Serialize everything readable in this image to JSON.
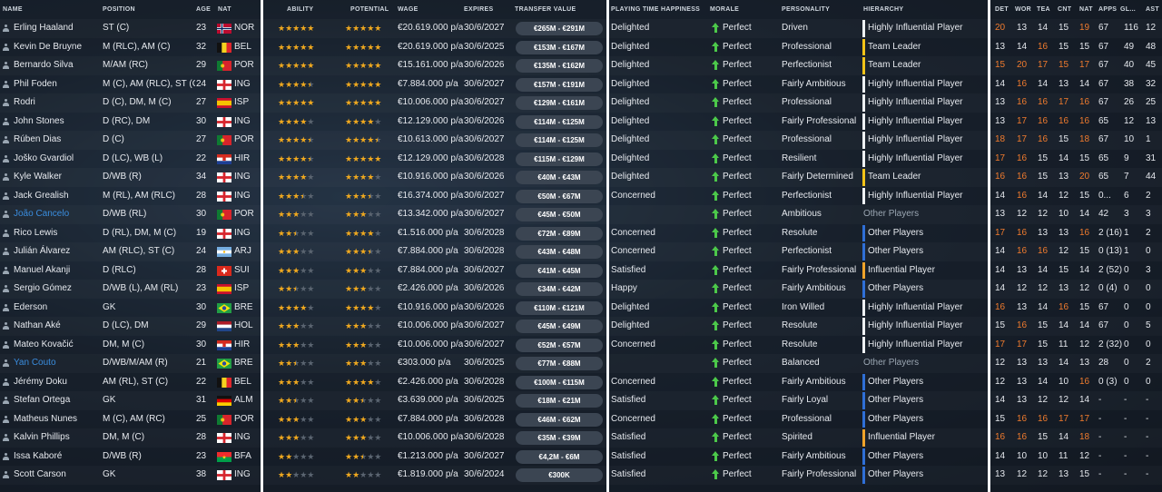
{
  "columns": {
    "name": "NAME",
    "position": "POSITION",
    "age": "AGE",
    "nat": "NAT",
    "ability": "ABILITY",
    "potential": "POTENTIAL",
    "wage": "WAGE",
    "expires": "EXPIRES",
    "transfer_value": "TRANSFER VALUE",
    "playing_time": "PLAYING TIME HAPPINESS",
    "morale": "MORALE",
    "personality": "PERSONALITY",
    "hierarchy": "HIERARCHY",
    "det": "DET",
    "wor": "WOR",
    "tea": "TEA",
    "cnt": "CNT",
    "nat2": "NAT",
    "apps": "APPS",
    "gls": "GL...",
    "ast": "AST"
  },
  "colors": {
    "accent_orange": "#f07b2e",
    "star": "#f0a91f",
    "morale_green": "#4cc94a",
    "tier_white": "#eef1f4",
    "tier_yellow": "#f2c318",
    "tier_blue": "#2f6fd6",
    "tier_orange": "#f0a32a",
    "loan_blue": "#3a8dde"
  },
  "players": [
    {
      "name": "Erling Haaland",
      "pos": "ST (C)",
      "age": "23",
      "nat": "NOR",
      "flag": "nor",
      "ab": 5,
      "pot": 5,
      "wage": "€20.619.000 p/a",
      "exp": "30/6/2027",
      "tv": "€265M - €291M",
      "pt": "Delighted",
      "morale": "Perfect",
      "pers": "Driven",
      "hier": "Highly Influential Player",
      "tier": "white",
      "det": "20",
      "wor": "13",
      "tea": "14",
      "cnt": "15",
      "nat2": "19",
      "apps": "67",
      "gls": "116",
      "ast": "12",
      "hi": [
        "det",
        "nat2"
      ]
    },
    {
      "name": "Kevin De Bruyne",
      "pos": "M (RLC), AM (C)",
      "age": "32",
      "nat": "BEL",
      "flag": "bel",
      "ab": 5,
      "pot": 5,
      "wage": "€20.619.000 p/a",
      "exp": "30/6/2025",
      "tv": "€153M - €167M",
      "pt": "Delighted",
      "morale": "Perfect",
      "pers": "Professional",
      "hier": "Team Leader",
      "tier": "yellow",
      "det": "13",
      "wor": "14",
      "tea": "16",
      "cnt": "15",
      "nat2": "15",
      "apps": "67",
      "gls": "49",
      "ast": "48",
      "hi": [
        "tea"
      ]
    },
    {
      "name": "Bernardo Silva",
      "pos": "M/AM (RC)",
      "age": "29",
      "nat": "POR",
      "flag": "por",
      "ab": 5,
      "pot": 5,
      "wage": "€15.161.000 p/a",
      "exp": "30/6/2026",
      "tv": "€135M - €162M",
      "pt": "Delighted",
      "morale": "Perfect",
      "pers": "Perfectionist",
      "hier": "Team Leader",
      "tier": "yellow",
      "det": "15",
      "wor": "20",
      "tea": "17",
      "cnt": "15",
      "nat2": "17",
      "apps": "67",
      "gls": "40",
      "ast": "45",
      "hi": [
        "det",
        "wor",
        "tea",
        "cnt",
        "nat2"
      ]
    },
    {
      "name": "Phil Foden",
      "pos": "M (C), AM (RLC), ST (C)",
      "age": "24",
      "nat": "ING",
      "flag": "eng",
      "ab": 4.5,
      "pot": 5,
      "wage": "€7.884.000 p/a",
      "exp": "30/6/2027",
      "tv": "€157M - €191M",
      "pt": "Delighted",
      "morale": "Perfect",
      "pers": "Fairly Ambitious",
      "hier": "Highly Influential Player",
      "tier": "white",
      "det": "14",
      "wor": "16",
      "tea": "14",
      "cnt": "13",
      "nat2": "14",
      "apps": "67",
      "gls": "38",
      "ast": "32",
      "hi": [
        "wor"
      ]
    },
    {
      "name": "Rodri",
      "pos": "D (C), DM, M (C)",
      "age": "27",
      "nat": "ISP",
      "flag": "esp",
      "ab": 5,
      "pot": 5,
      "wage": "€10.006.000 p/a",
      "exp": "30/6/2027",
      "tv": "€129M - €161M",
      "pt": "Delighted",
      "morale": "Perfect",
      "pers": "Professional",
      "hier": "Highly Influential Player",
      "tier": "white",
      "det": "13",
      "wor": "16",
      "tea": "16",
      "cnt": "17",
      "nat2": "16",
      "apps": "67",
      "gls": "26",
      "ast": "25",
      "hi": [
        "wor",
        "tea",
        "cnt",
        "nat2"
      ]
    },
    {
      "name": "John Stones",
      "pos": "D (RC), DM",
      "age": "30",
      "nat": "ING",
      "flag": "eng",
      "ab": 4,
      "pot": 4,
      "wage": "€12.129.000 p/a",
      "exp": "30/6/2026",
      "tv": "€114M - €125M",
      "pt": "Delighted",
      "morale": "Perfect",
      "pers": "Fairly Professional",
      "hier": "Highly Influential Player",
      "tier": "white",
      "det": "13",
      "wor": "17",
      "tea": "16",
      "cnt": "16",
      "nat2": "16",
      "apps": "65",
      "gls": "12",
      "ast": "13",
      "hi": [
        "wor",
        "tea",
        "cnt",
        "nat2"
      ]
    },
    {
      "name": "Rúben Dias",
      "pos": "D (C)",
      "age": "27",
      "nat": "POR",
      "flag": "por",
      "ab": 4.5,
      "pot": 4.5,
      "wage": "€10.613.000 p/a",
      "exp": "30/6/2027",
      "tv": "€114M - €125M",
      "pt": "Delighted",
      "morale": "Perfect",
      "pers": "Professional",
      "hier": "Highly Influential Player",
      "tier": "white",
      "det": "18",
      "wor": "17",
      "tea": "16",
      "cnt": "15",
      "nat2": "18",
      "apps": "67",
      "gls": "10",
      "ast": "1",
      "hi": [
        "det",
        "wor",
        "tea",
        "nat2"
      ]
    },
    {
      "name": "Joško Gvardiol",
      "pos": "D (LC), WB (L)",
      "age": "22",
      "nat": "HIR",
      "flag": "cro",
      "ab": 4.5,
      "pot": 5,
      "wage": "€12.129.000 p/a",
      "exp": "30/6/2028",
      "tv": "€115M - €129M",
      "pt": "Delighted",
      "morale": "Perfect",
      "pers": "Resilient",
      "hier": "Highly Influential Player",
      "tier": "white",
      "det": "17",
      "wor": "16",
      "tea": "15",
      "cnt": "14",
      "nat2": "15",
      "apps": "65",
      "gls": "9",
      "ast": "31",
      "hi": [
        "det",
        "wor"
      ]
    },
    {
      "name": "Kyle Walker",
      "pos": "D/WB (R)",
      "age": "34",
      "nat": "ING",
      "flag": "eng",
      "ab": 4,
      "pot": 4,
      "wage": "€10.916.000 p/a",
      "exp": "30/6/2026",
      "tv": "€40M - €43M",
      "pt": "Delighted",
      "morale": "Perfect",
      "pers": "Fairly Determined",
      "hier": "Team Leader",
      "tier": "yellow",
      "det": "16",
      "wor": "16",
      "tea": "15",
      "cnt": "13",
      "nat2": "20",
      "apps": "65",
      "gls": "7",
      "ast": "44",
      "hi": [
        "det",
        "wor",
        "nat2"
      ]
    },
    {
      "name": "Jack Grealish",
      "pos": "M (RL), AM (RLC)",
      "age": "28",
      "nat": "ING",
      "flag": "eng",
      "ab": 3.5,
      "pot": 3.5,
      "wage": "€16.374.000 p/a",
      "exp": "30/6/2027",
      "tv": "€50M - €67M",
      "pt": "Concerned",
      "morale": "Perfect",
      "pers": "Perfectionist",
      "hier": "Highly Influential Player",
      "tier": "white",
      "det": "14",
      "wor": "16",
      "tea": "14",
      "cnt": "12",
      "nat2": "15",
      "apps": "0...",
      "gls": "6",
      "ast": "2",
      "hi": [
        "wor"
      ]
    },
    {
      "name": "João Cancelo",
      "pos": "D/WB (RL)",
      "age": "30",
      "nat": "POR",
      "flag": "por",
      "ab": 3,
      "pot": 3,
      "wage": "€13.342.000 p/a",
      "exp": "30/6/2027",
      "tv": "€45M - €50M",
      "pt": "",
      "morale": "Perfect",
      "pers": "Ambitious",
      "hier": "Other Players",
      "tier": "none",
      "det": "13",
      "wor": "12",
      "tea": "12",
      "cnt": "10",
      "nat2": "14",
      "apps": "42",
      "gls": "3",
      "ast": "3",
      "hi": [],
      "loan": true
    },
    {
      "name": "Rico Lewis",
      "pos": "D (RL), DM, M (C)",
      "age": "19",
      "nat": "ING",
      "flag": "eng",
      "ab": 2.5,
      "pot": 4,
      "wage": "€1.516.000 p/a",
      "exp": "30/6/2028",
      "tv": "€72M - €89M",
      "pt": "Concerned",
      "morale": "Perfect",
      "pers": "Resolute",
      "hier": "Other Players",
      "tier": "blue",
      "det": "17",
      "wor": "16",
      "tea": "13",
      "cnt": "13",
      "nat2": "16",
      "apps": "2 (16)",
      "gls": "1",
      "ast": "2",
      "hi": [
        "det",
        "wor",
        "nat2"
      ]
    },
    {
      "name": "Julián Álvarez",
      "pos": "AM (RLC), ST (C)",
      "age": "24",
      "nat": "ARJ",
      "flag": "arg",
      "ab": 3,
      "pot": 3.5,
      "wage": "€7.884.000 p/a",
      "exp": "30/6/2028",
      "tv": "€43M - €48M",
      "pt": "Concerned",
      "morale": "Perfect",
      "pers": "Perfectionist",
      "hier": "Other Players",
      "tier": "blue",
      "det": "14",
      "wor": "16",
      "tea": "16",
      "cnt": "12",
      "nat2": "15",
      "apps": "0 (13)",
      "gls": "1",
      "ast": "0",
      "hi": [
        "wor",
        "tea"
      ]
    },
    {
      "name": "Manuel Akanji",
      "pos": "D (RLC)",
      "age": "28",
      "nat": "SUI",
      "flag": "sui",
      "ab": 3,
      "pot": 3,
      "wage": "€7.884.000 p/a",
      "exp": "30/6/2027",
      "tv": "€41M - €45M",
      "pt": "Satisfied",
      "morale": "Perfect",
      "pers": "Fairly Professional",
      "hier": "Influential Player",
      "tier": "orange",
      "det": "14",
      "wor": "13",
      "tea": "14",
      "cnt": "15",
      "nat2": "14",
      "apps": "2 (52)",
      "gls": "0",
      "ast": "3",
      "hi": []
    },
    {
      "name": "Sergio Gómez",
      "pos": "D/WB (L), AM (RL)",
      "age": "23",
      "nat": "ISP",
      "flag": "esp",
      "ab": 2.5,
      "pot": 3,
      "wage": "€2.426.000 p/a",
      "exp": "30/6/2026",
      "tv": "€34M - €42M",
      "pt": "Happy",
      "morale": "Perfect",
      "pers": "Fairly Ambitious",
      "hier": "Other Players",
      "tier": "blue",
      "det": "14",
      "wor": "12",
      "tea": "12",
      "cnt": "13",
      "nat2": "12",
      "apps": "0 (4)",
      "gls": "0",
      "ast": "0",
      "hi": []
    },
    {
      "name": "Ederson",
      "pos": "GK",
      "age": "30",
      "nat": "BRE",
      "flag": "bra",
      "ab": 4,
      "pot": 4,
      "wage": "€10.916.000 p/a",
      "exp": "30/6/2026",
      "tv": "€110M - €121M",
      "pt": "Delighted",
      "morale": "Perfect",
      "pers": "Iron Willed",
      "hier": "Highly Influential Player",
      "tier": "white",
      "det": "16",
      "wor": "13",
      "tea": "14",
      "cnt": "16",
      "nat2": "15",
      "apps": "67",
      "gls": "0",
      "ast": "0",
      "hi": [
        "det",
        "cnt"
      ]
    },
    {
      "name": "Nathan Aké",
      "pos": "D (LC), DM",
      "age": "29",
      "nat": "HOL",
      "flag": "ned",
      "ab": 3,
      "pot": 3,
      "wage": "€10.006.000 p/a",
      "exp": "30/6/2027",
      "tv": "€45M - €49M",
      "pt": "Delighted",
      "morale": "Perfect",
      "pers": "Resolute",
      "hier": "Highly Influential Player",
      "tier": "white",
      "det": "15",
      "wor": "16",
      "tea": "15",
      "cnt": "14",
      "nat2": "14",
      "apps": "67",
      "gls": "0",
      "ast": "5",
      "hi": [
        "wor"
      ]
    },
    {
      "name": "Mateo Kovačić",
      "pos": "DM, M (C)",
      "age": "30",
      "nat": "HIR",
      "flag": "cro",
      "ab": 3,
      "pot": 3,
      "wage": "€10.006.000 p/a",
      "exp": "30/6/2027",
      "tv": "€52M - €57M",
      "pt": "Concerned",
      "morale": "Perfect",
      "pers": "Resolute",
      "hier": "Highly Influential Player",
      "tier": "white",
      "det": "17",
      "wor": "17",
      "tea": "15",
      "cnt": "11",
      "nat2": "12",
      "apps": "2 (32)",
      "gls": "0",
      "ast": "0",
      "hi": [
        "det",
        "wor"
      ]
    },
    {
      "name": "Yan Couto",
      "pos": "D/WB/M/AM (R)",
      "age": "21",
      "nat": "BRE",
      "flag": "bra",
      "ab": 2.5,
      "pot": 3,
      "wage": "€303.000 p/a",
      "exp": "30/6/2025",
      "tv": "€77M - €88M",
      "pt": "",
      "morale": "Perfect",
      "pers": "Balanced",
      "hier": "Other Players",
      "tier": "none",
      "det": "12",
      "wor": "13",
      "tea": "13",
      "cnt": "14",
      "nat2": "13",
      "apps": "28",
      "gls": "0",
      "ast": "2",
      "hi": [],
      "loan": true
    },
    {
      "name": "Jérémy Doku",
      "pos": "AM (RL), ST (C)",
      "age": "22",
      "nat": "BEL",
      "flag": "bel",
      "ab": 3,
      "pot": 4,
      "wage": "€2.426.000 p/a",
      "exp": "30/6/2028",
      "tv": "€100M - €115M",
      "pt": "Concerned",
      "morale": "Perfect",
      "pers": "Fairly Ambitious",
      "hier": "Other Players",
      "tier": "blue",
      "det": "12",
      "wor": "13",
      "tea": "14",
      "cnt": "10",
      "nat2": "16",
      "apps": "0 (3)",
      "gls": "0",
      "ast": "0",
      "hi": [
        "nat2"
      ]
    },
    {
      "name": "Stefan Ortega",
      "pos": "GK",
      "age": "31",
      "nat": "ALM",
      "flag": "ger",
      "ab": 2.5,
      "pot": 2.5,
      "wage": "€3.639.000 p/a",
      "exp": "30/6/2025",
      "tv": "€18M - €21M",
      "pt": "Satisfied",
      "morale": "Perfect",
      "pers": "Fairly Loyal",
      "hier": "Other Players",
      "tier": "blue",
      "det": "14",
      "wor": "13",
      "tea": "12",
      "cnt": "12",
      "nat2": "14",
      "apps": "-",
      "gls": "-",
      "ast": "-",
      "hi": []
    },
    {
      "name": "Matheus Nunes",
      "pos": "M (C), AM (RC)",
      "age": "25",
      "nat": "POR",
      "flag": "por",
      "ab": 3,
      "pot": 3,
      "wage": "€7.884.000 p/a",
      "exp": "30/6/2028",
      "tv": "€46M - €62M",
      "pt": "Concerned",
      "morale": "Perfect",
      "pers": "Professional",
      "hier": "Other Players",
      "tier": "blue",
      "det": "15",
      "wor": "16",
      "tea": "16",
      "cnt": "17",
      "nat2": "17",
      "apps": "-",
      "gls": "-",
      "ast": "-",
      "hi": [
        "wor",
        "tea",
        "cnt",
        "nat2"
      ]
    },
    {
      "name": "Kalvin Phillips",
      "pos": "DM, M (C)",
      "age": "28",
      "nat": "ING",
      "flag": "eng",
      "ab": 3,
      "pot": 3,
      "wage": "€10.006.000 p/a",
      "exp": "30/6/2028",
      "tv": "€35M - €39M",
      "pt": "Satisfied",
      "morale": "Perfect",
      "pers": "Spirited",
      "hier": "Influential Player",
      "tier": "orange",
      "det": "16",
      "wor": "16",
      "tea": "15",
      "cnt": "14",
      "nat2": "18",
      "apps": "-",
      "gls": "-",
      "ast": "-",
      "hi": [
        "det",
        "wor",
        "nat2"
      ]
    },
    {
      "name": "Issa Kaboré",
      "pos": "D/WB (R)",
      "age": "23",
      "nat": "BFA",
      "flag": "bfa",
      "ab": 2,
      "pot": 2.5,
      "wage": "€1.213.000 p/a",
      "exp": "30/6/2027",
      "tv": "€4,2M - €6M",
      "pt": "Satisfied",
      "morale": "Perfect",
      "pers": "Fairly Ambitious",
      "hier": "Other Players",
      "tier": "blue",
      "det": "14",
      "wor": "10",
      "tea": "10",
      "cnt": "11",
      "nat2": "12",
      "apps": "-",
      "gls": "-",
      "ast": "-",
      "hi": []
    },
    {
      "name": "Scott Carson",
      "pos": "GK",
      "age": "38",
      "nat": "ING",
      "flag": "eng",
      "ab": 2,
      "pot": 2,
      "wage": "€1.819.000 p/a",
      "exp": "30/6/2024",
      "tv": "€300K",
      "pt": "Satisfied",
      "morale": "Perfect",
      "pers": "Fairly Professional",
      "hier": "Other Players",
      "tier": "blue",
      "det": "13",
      "wor": "12",
      "tea": "12",
      "cnt": "13",
      "nat2": "15",
      "apps": "-",
      "gls": "-",
      "ast": "-",
      "hi": []
    }
  ]
}
